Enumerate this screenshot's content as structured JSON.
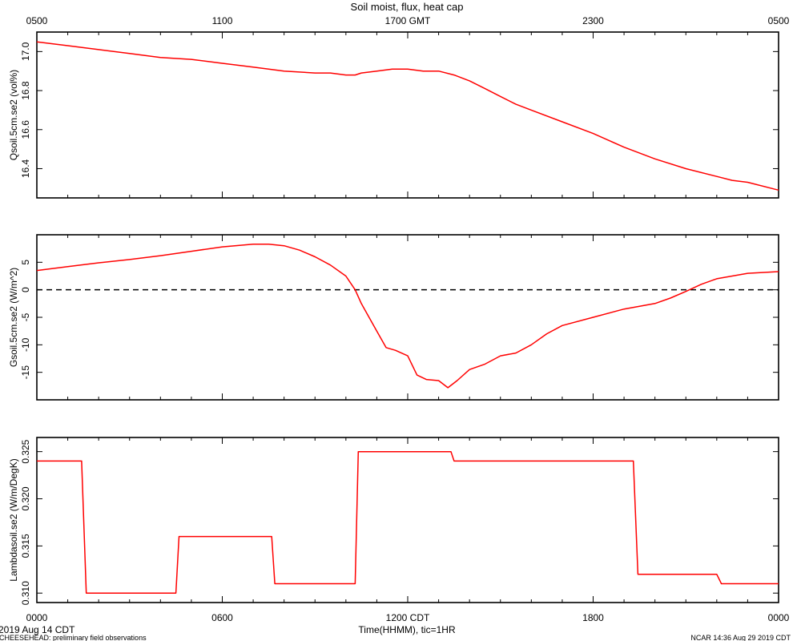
{
  "title": "Soil moist, flux, heat cap",
  "top_axis_ticks": [
    "0500",
    "1100",
    "1700 GMT",
    "2300",
    "0500"
  ],
  "bottom_axis_ticks": [
    "0000",
    "0600",
    "1200 CDT",
    "1800",
    "0000"
  ],
  "xlabel": "Time(HHMM), tic=1HR",
  "date_label": "2019 Aug 14 CDT",
  "footer_left": "CHEESEHEAD: preliminary field observations",
  "footer_right": "NCAR 14:36 Aug 29 2019 CDT",
  "line_color": "#ff0000",
  "chart_data": [
    {
      "type": "line",
      "ylabel": "Qsoil.5cm.se2 (vol%)",
      "ylim": [
        16.25,
        17.1
      ],
      "yticks": [
        16.4,
        16.6,
        16.8,
        17.0
      ],
      "yticklabels": [
        "16.4",
        "16.6",
        "16.8",
        "17.0"
      ],
      "xlim": [
        0,
        24
      ],
      "series": [
        {
          "x": [
            0,
            0.5,
            1,
            2,
            3,
            4,
            5,
            6,
            7,
            7.5,
            8,
            9,
            9.5,
            10,
            10.3,
            10.5,
            11,
            11.5,
            12,
            12.5,
            13,
            13.5,
            14,
            14.5,
            15,
            15.5,
            16,
            17,
            18,
            19,
            20,
            21,
            22,
            22.5,
            23,
            24
          ],
          "y": [
            17.05,
            17.04,
            17.03,
            17.01,
            16.99,
            16.97,
            16.96,
            16.94,
            16.92,
            16.91,
            16.9,
            16.89,
            16.89,
            16.88,
            16.88,
            16.89,
            16.9,
            16.91,
            16.91,
            16.9,
            16.9,
            16.88,
            16.85,
            16.81,
            16.77,
            16.73,
            16.7,
            16.64,
            16.58,
            16.51,
            16.45,
            16.4,
            16.36,
            16.34,
            16.33,
            16.29
          ]
        }
      ]
    },
    {
      "type": "line",
      "ylabel": "Gsoil.5cm.se2 (W/m^2)",
      "ylim": [
        -20,
        10
      ],
      "yticks": [
        -15,
        -10,
        -5,
        0,
        5
      ],
      "yticklabels": [
        "-15",
        "-10",
        "-5",
        "0",
        "5"
      ],
      "xlim": [
        0,
        24
      ],
      "reference_line": 0,
      "series": [
        {
          "x": [
            0,
            1,
            2,
            3,
            4,
            5,
            6,
            7,
            7.5,
            8,
            8.5,
            9,
            9.5,
            10,
            10.3,
            10.5,
            11,
            11.3,
            11.6,
            12,
            12.3,
            12.6,
            13,
            13.3,
            13.6,
            14,
            14.5,
            15,
            15.5,
            16,
            16.5,
            17,
            18,
            19,
            20,
            20.5,
            21,
            21.5,
            22,
            23,
            24
          ],
          "y": [
            3.5,
            4.2,
            4.9,
            5.5,
            6.2,
            7.0,
            7.8,
            8.3,
            8.3,
            8.0,
            7.2,
            6.0,
            4.5,
            2.5,
            0.0,
            -2.5,
            -7.5,
            -10.5,
            -11.0,
            -12.0,
            -15.5,
            -16.3,
            -16.5,
            -17.8,
            -16.5,
            -14.5,
            -13.5,
            -12.0,
            -11.5,
            -10.0,
            -8.0,
            -6.5,
            -5.0,
            -3.5,
            -2.5,
            -1.5,
            -0.3,
            1.0,
            2.0,
            3.0,
            3.3
          ]
        }
      ]
    },
    {
      "type": "line",
      "ylabel": "Lambdasoil.se2 (W/m/DegK)",
      "ylim": [
        0.309,
        0.3265
      ],
      "yticks": [
        0.31,
        0.315,
        0.32,
        0.325
      ],
      "yticklabels": [
        "0.310",
        "0.315",
        "0.320",
        "0.325"
      ],
      "xlim": [
        0,
        24
      ],
      "series": [
        {
          "x": [
            0,
            1.45,
            1.6,
            4.5,
            4.6,
            7.6,
            7.7,
            10.3,
            10.4,
            13.4,
            13.5,
            19.3,
            19.45,
            22.0,
            22.15,
            24
          ],
          "y": [
            0.324,
            0.324,
            0.31,
            0.31,
            0.316,
            0.316,
            0.311,
            0.311,
            0.325,
            0.325,
            0.324,
            0.324,
            0.312,
            0.312,
            0.311,
            0.311
          ]
        }
      ]
    }
  ]
}
